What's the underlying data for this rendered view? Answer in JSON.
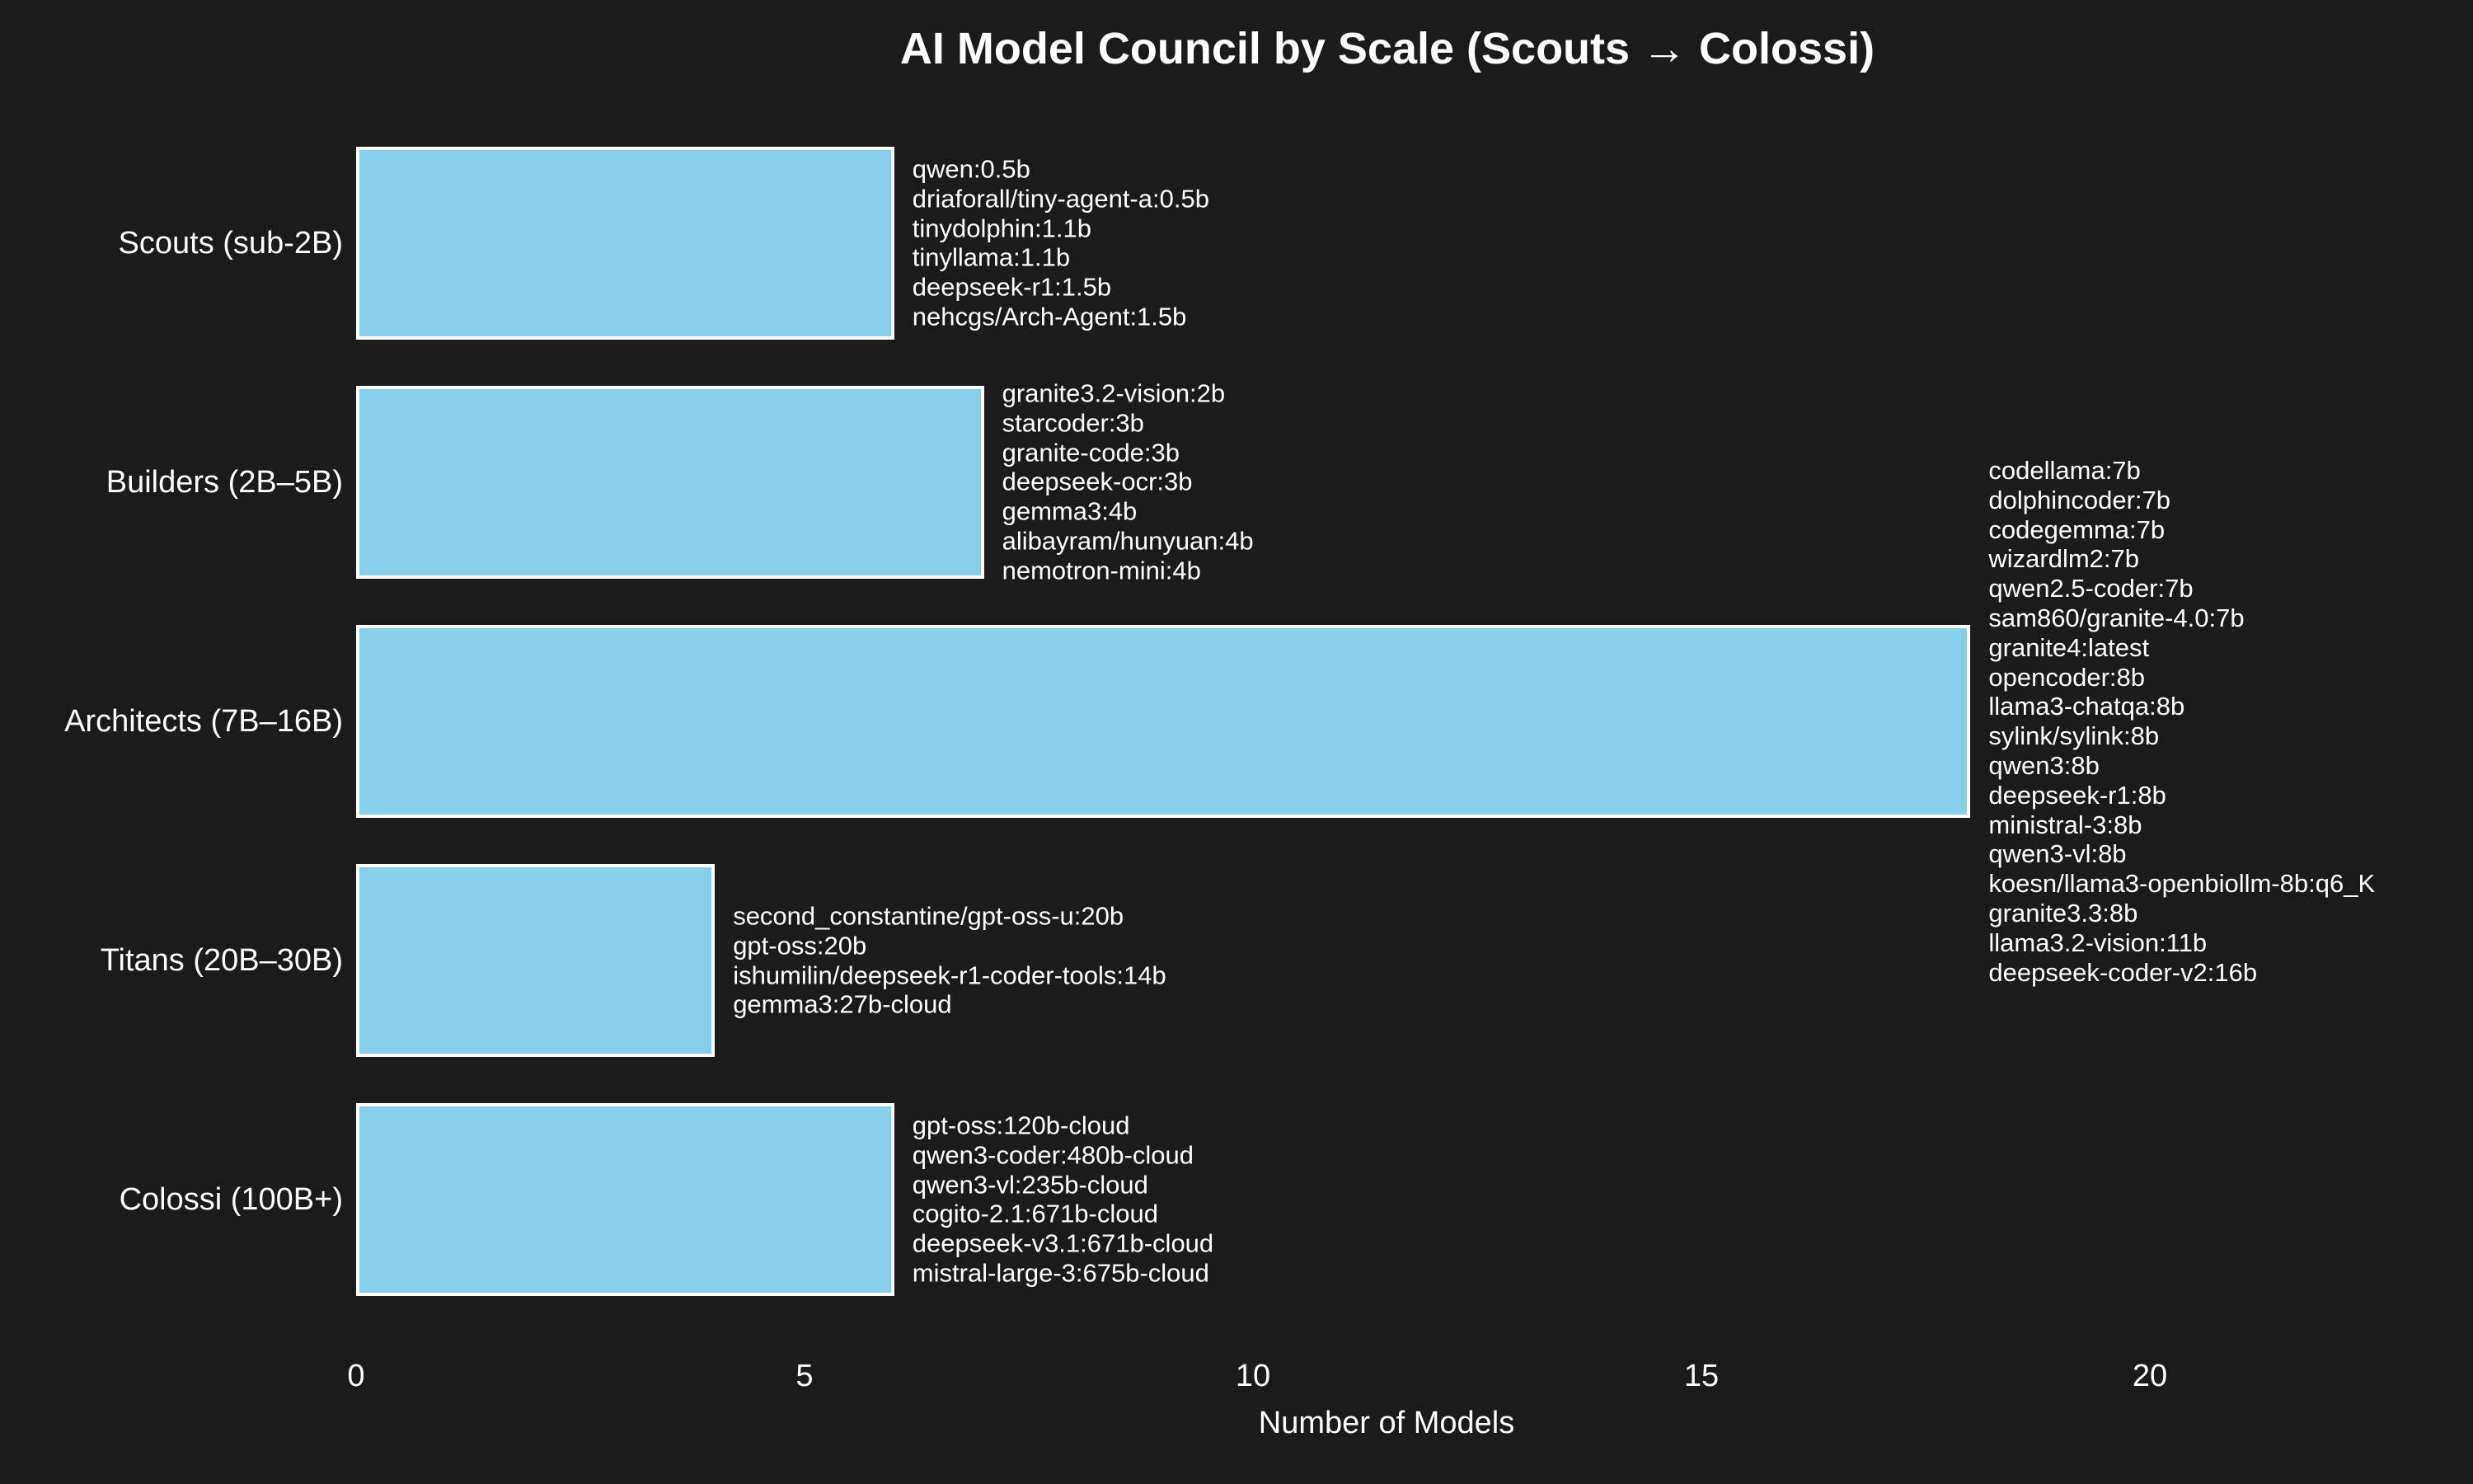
{
  "chart_data": {
    "type": "bar",
    "orientation": "horizontal",
    "title": "AI Model Council by Scale (Scouts → Colossi)",
    "xlabel": "Number of Models",
    "ylabel": "",
    "xlim": [
      0,
      23
    ],
    "xticks": [
      "0",
      "5",
      "10",
      "15",
      "20"
    ],
    "grid": false,
    "bar_color": "#87ceeb",
    "bar_edge_color": "#ffffff",
    "background": "#1b1b1b",
    "categories": [
      "Scouts (sub-2B)",
      "Builders (2B–5B)",
      "Architects (7B–16B)",
      "Titans (20B–30B)",
      "Colossi (100B+)"
    ],
    "values": [
      6,
      7,
      18,
      4,
      6
    ],
    "annotations": [
      [
        "qwen:0.5b",
        "driaforall/tiny-agent-a:0.5b",
        "tinydolphin:1.1b",
        "tinyllama:1.1b",
        "deepseek-r1:1.5b",
        "nehcgs/Arch-Agent:1.5b"
      ],
      [
        "granite3.2-vision:2b",
        "starcoder:3b",
        "granite-code:3b",
        "deepseek-ocr:3b",
        "gemma3:4b",
        "alibayram/hunyuan:4b",
        "nemotron-mini:4b"
      ],
      [
        "codellama:7b",
        "dolphincoder:7b",
        "codegemma:7b",
        "wizardlm2:7b",
        "qwen2.5-coder:7b",
        "sam860/granite-4.0:7b",
        "granite4:latest",
        "opencoder:8b",
        "llama3-chatqa:8b",
        "sylink/sylink:8b",
        "qwen3:8b",
        "deepseek-r1:8b",
        "ministral-3:8b",
        "qwen3-vl:8b",
        "koesn/llama3-openbiollm-8b:q6_K",
        "granite3.3:8b",
        "llama3.2-vision:11b",
        "deepseek-coder-v2:16b"
      ],
      [
        "second_constantine/gpt-oss-u:20b",
        "gpt-oss:20b",
        "ishumilin/deepseek-r1-coder-tools:14b",
        "gemma3:27b-cloud"
      ],
      [
        "gpt-oss:120b-cloud",
        "qwen3-coder:480b-cloud",
        "qwen3-vl:235b-cloud",
        "cogito-2.1:671b-cloud",
        "deepseek-v3.1:671b-cloud",
        "mistral-large-3:675b-cloud"
      ]
    ]
  },
  "title": "AI Model Council by Scale (Scouts → Colossi)",
  "xlabel": "Number of Models",
  "ticks": [
    "0",
    "5",
    "10",
    "15",
    "20"
  ],
  "rows": [
    {
      "label": "Scouts (sub-2B)",
      "value": 6,
      "models": [
        "qwen:0.5b",
        "driaforall/tiny-agent-a:0.5b",
        "tinydolphin:1.1b",
        "tinyllama:1.1b",
        "deepseek-r1:1.5b",
        "nehcgs/Arch-Agent:1.5b"
      ]
    },
    {
      "label": "Builders (2B–5B)",
      "value": 7,
      "models": [
        "granite3.2-vision:2b",
        "starcoder:3b",
        "granite-code:3b",
        "deepseek-ocr:3b",
        "gemma3:4b",
        "alibayram/hunyuan:4b",
        "nemotron-mini:4b"
      ]
    },
    {
      "label": "Architects (7B–16B)",
      "value": 18,
      "models": [
        "codellama:7b",
        "dolphincoder:7b",
        "codegemma:7b",
        "wizardlm2:7b",
        "qwen2.5-coder:7b",
        "sam860/granite-4.0:7b",
        "granite4:latest",
        "opencoder:8b",
        "llama3-chatqa:8b",
        "sylink/sylink:8b",
        "qwen3:8b",
        "deepseek-r1:8b",
        "ministral-3:8b",
        "qwen3-vl:8b",
        "koesn/llama3-openbiollm-8b:q6_K",
        "granite3.3:8b",
        "llama3.2-vision:11b",
        "deepseek-coder-v2:16b"
      ]
    },
    {
      "label": "Titans (20B–30B)",
      "value": 4,
      "models": [
        "second_constantine/gpt-oss-u:20b",
        "gpt-oss:20b",
        "ishumilin/deepseek-r1-coder-tools:14b",
        "gemma3:27b-cloud"
      ]
    },
    {
      "label": "Colossi (100B+)",
      "value": 6,
      "models": [
        "gpt-oss:120b-cloud",
        "qwen3-coder:480b-cloud",
        "qwen3-vl:235b-cloud",
        "cogito-2.1:671b-cloud",
        "deepseek-v3.1:671b-cloud",
        "mistral-large-3:675b-cloud"
      ]
    }
  ]
}
